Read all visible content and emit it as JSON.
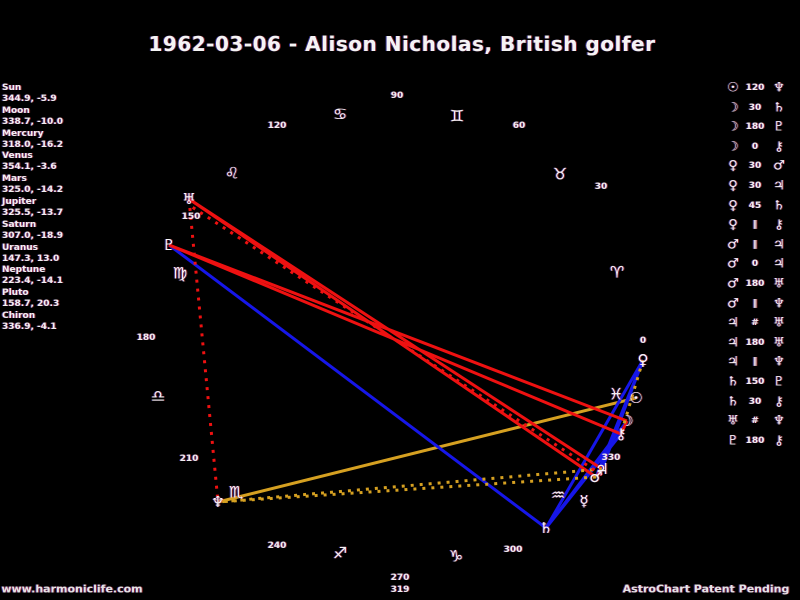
{
  "title": "1962-03-06 - Alison Nicholas, British golfer",
  "footer": {
    "watermark": "www.harmoniclife.com",
    "patent_notice": "AstroChart Patent Pending",
    "version_label": "319"
  },
  "colors": {
    "background": "#000000",
    "text": "#f0f0f0",
    "hard_aspect_red": "#ee1111",
    "soft_aspect_blue": "#1616e8",
    "trine_gold": "#d5a021",
    "parallel_gold_dotted": "#d5a021",
    "contraparallel_red_dotted": "#ee1111"
  },
  "planet_list": [
    {
      "name": "Sun",
      "value": "344.9, -5.9"
    },
    {
      "name": "Moon",
      "value": "338.7, -10.0"
    },
    {
      "name": "Mercury",
      "value": "318.0, -16.2"
    },
    {
      "name": "Venus",
      "value": "354.1, -3.6"
    },
    {
      "name": "Mars",
      "value": "325.0, -14.2"
    },
    {
      "name": "Jupiter",
      "value": "325.5, -13.7"
    },
    {
      "name": "Saturn",
      "value": "307.0, -18.9"
    },
    {
      "name": "Uranus",
      "value": "147.3, 13.0"
    },
    {
      "name": "Neptune",
      "value": "223.4, -14.1"
    },
    {
      "name": "Pluto",
      "value": "158.7, 20.3"
    },
    {
      "name": "Chiron",
      "value": "336.9, -4.1"
    }
  ],
  "chart_data": {
    "type": "scatter",
    "subtype": "astrology-natal-wheel",
    "title": "1962-03-06 - Alison Nicholas, British golfer",
    "layout_hint": "ecliptic longitude wheel, 0 degrees Aries at right, degrees increase counterclockwise, planets plotted on ring, zodiac sign glyphs just inside ring, degree tick labels every 30 degrees",
    "degree_labels": [
      "0",
      "30",
      "60",
      "90",
      "120",
      "150",
      "180",
      "210",
      "240",
      "270",
      "300",
      "330"
    ],
    "signs": [
      {
        "name": "Aries",
        "glyph": "♈"
      },
      {
        "name": "Taurus",
        "glyph": "♉"
      },
      {
        "name": "Gemini",
        "glyph": "♊"
      },
      {
        "name": "Cancer",
        "glyph": "♋"
      },
      {
        "name": "Leo",
        "glyph": "♌"
      },
      {
        "name": "Virgo",
        "glyph": "♍"
      },
      {
        "name": "Libra",
        "glyph": "♎"
      },
      {
        "name": "Scorpio",
        "glyph": "♏"
      },
      {
        "name": "Sagittarius",
        "glyph": "♐"
      },
      {
        "name": "Capricorn",
        "glyph": "♑"
      },
      {
        "name": "Aquarius",
        "glyph": "♒"
      },
      {
        "name": "Pisces",
        "glyph": "♓"
      }
    ],
    "planets": [
      {
        "name": "Sun",
        "glyph": "☉",
        "longitude": 344.9,
        "declination": -5.9
      },
      {
        "name": "Moon",
        "glyph": "☽",
        "longitude": 338.7,
        "declination": -10.0
      },
      {
        "name": "Mercury",
        "glyph": "☿",
        "longitude": 318.0,
        "declination": -16.2
      },
      {
        "name": "Venus",
        "glyph": "♀",
        "longitude": 354.1,
        "declination": -3.6
      },
      {
        "name": "Mars",
        "glyph": "♂",
        "longitude": 325.0,
        "declination": -14.2
      },
      {
        "name": "Jupiter",
        "glyph": "♃",
        "longitude": 325.5,
        "declination": -13.7
      },
      {
        "name": "Saturn",
        "glyph": "♄",
        "longitude": 307.0,
        "declination": -18.9
      },
      {
        "name": "Uranus",
        "glyph": "♅",
        "longitude": 147.3,
        "declination": 13.0
      },
      {
        "name": "Neptune",
        "glyph": "♆",
        "longitude": 223.4,
        "declination": -14.1
      },
      {
        "name": "Pluto",
        "glyph": "♇",
        "longitude": 158.7,
        "declination": 20.3
      },
      {
        "name": "Chiron",
        "glyph": "⚷",
        "longitude": 336.9,
        "declination": -4.1
      }
    ],
    "aspects": [
      {
        "a": "Sun",
        "type": "120",
        "b": "Neptune"
      },
      {
        "a": "Moon",
        "type": "30",
        "b": "Saturn"
      },
      {
        "a": "Moon",
        "type": "180",
        "b": "Pluto"
      },
      {
        "a": "Moon",
        "type": "0",
        "b": "Chiron"
      },
      {
        "a": "Venus",
        "type": "30",
        "b": "Mars"
      },
      {
        "a": "Venus",
        "type": "30",
        "b": "Jupiter"
      },
      {
        "a": "Venus",
        "type": "45",
        "b": "Saturn"
      },
      {
        "a": "Venus",
        "type": "parallel",
        "b": "Chiron"
      },
      {
        "a": "Mars",
        "type": "parallel",
        "b": "Jupiter"
      },
      {
        "a": "Mars",
        "type": "0",
        "b": "Jupiter"
      },
      {
        "a": "Mars",
        "type": "180",
        "b": "Uranus"
      },
      {
        "a": "Mars",
        "type": "parallel",
        "b": "Neptune"
      },
      {
        "a": "Jupiter",
        "type": "contraparallel",
        "b": "Uranus"
      },
      {
        "a": "Jupiter",
        "type": "180",
        "b": "Uranus"
      },
      {
        "a": "Jupiter",
        "type": "parallel",
        "b": "Neptune"
      },
      {
        "a": "Saturn",
        "type": "150",
        "b": "Pluto"
      },
      {
        "a": "Saturn",
        "type": "30",
        "b": "Chiron"
      },
      {
        "a": "Uranus",
        "type": "contraparallel",
        "b": "Neptune"
      },
      {
        "a": "Pluto",
        "type": "180",
        "b": "Chiron"
      }
    ],
    "aspect_symbols": {
      "parallel": "∥",
      "contraparallel": "#"
    }
  }
}
